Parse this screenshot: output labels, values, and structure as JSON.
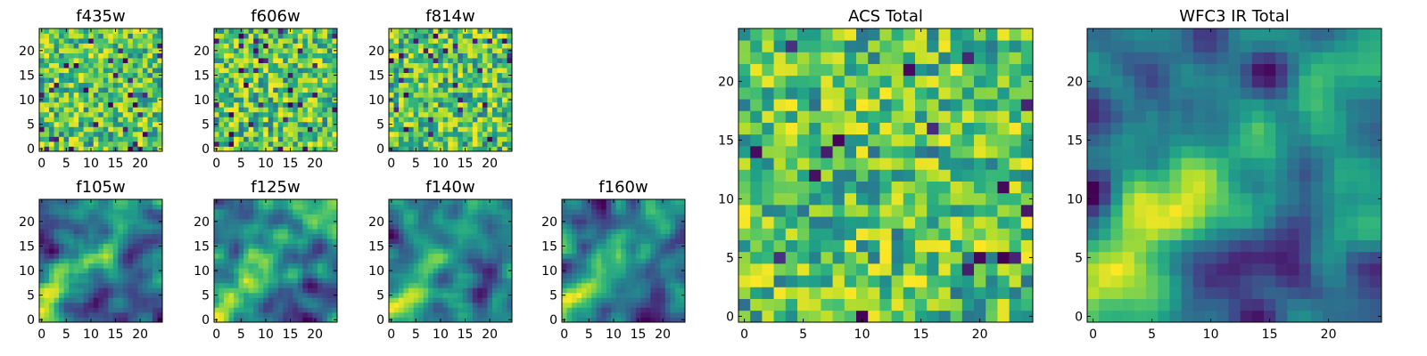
{
  "chart_data": [
    {
      "type": "heatmap",
      "title": "f435w",
      "xticks": [
        0,
        5,
        10,
        15,
        20
      ],
      "yticks": [
        0,
        5,
        10,
        15,
        20
      ],
      "grid_size": 25,
      "xlim": [
        -0.5,
        24.5
      ],
      "ylim": [
        -0.5,
        24.5
      ],
      "colormap": "viridis",
      "pattern": "noise"
    },
    {
      "type": "heatmap",
      "title": "f606w",
      "xticks": [
        0,
        5,
        10,
        15,
        20
      ],
      "yticks": [
        0,
        5,
        10,
        15,
        20
      ],
      "grid_size": 25,
      "xlim": [
        -0.5,
        24.5
      ],
      "ylim": [
        -0.5,
        24.5
      ],
      "colormap": "viridis",
      "pattern": "noise"
    },
    {
      "type": "heatmap",
      "title": "f814w",
      "xticks": [
        0,
        5,
        10,
        15,
        20
      ],
      "yticks": [
        0,
        5,
        10,
        15,
        20
      ],
      "grid_size": 25,
      "xlim": [
        -0.5,
        24.5
      ],
      "ylim": [
        -0.5,
        24.5
      ],
      "colormap": "viridis",
      "pattern": "noise"
    },
    {
      "type": "heatmap",
      "title": "f105w",
      "xticks": [
        0,
        5,
        10,
        15,
        20
      ],
      "yticks": [
        0,
        5,
        10,
        15,
        20
      ],
      "grid_size": 25,
      "xlim": [
        -0.5,
        24.5
      ],
      "ylim": [
        -0.5,
        24.5
      ],
      "colormap": "viridis",
      "pattern": "smooth"
    },
    {
      "type": "heatmap",
      "title": "f125w",
      "xticks": [
        0,
        5,
        10,
        15,
        20
      ],
      "yticks": [
        0,
        5,
        10,
        15,
        20
      ],
      "grid_size": 25,
      "xlim": [
        -0.5,
        24.5
      ],
      "ylim": [
        -0.5,
        24.5
      ],
      "colormap": "viridis",
      "pattern": "smooth"
    },
    {
      "type": "heatmap",
      "title": "f140w",
      "xticks": [
        0,
        5,
        10,
        15,
        20
      ],
      "yticks": [
        0,
        5,
        10,
        15,
        20
      ],
      "grid_size": 25,
      "xlim": [
        -0.5,
        24.5
      ],
      "ylim": [
        -0.5,
        24.5
      ],
      "colormap": "viridis",
      "pattern": "smooth"
    },
    {
      "type": "heatmap",
      "title": "f160w",
      "xticks": [
        0,
        5,
        10,
        15,
        20
      ],
      "yticks": [
        0,
        5,
        10,
        15,
        20
      ],
      "grid_size": 25,
      "xlim": [
        -0.5,
        24.5
      ],
      "ylim": [
        -0.5,
        24.5
      ],
      "colormap": "viridis",
      "pattern": "smooth"
    },
    {
      "type": "heatmap",
      "title": "ACS Total",
      "xticks": [
        0,
        5,
        10,
        15,
        20
      ],
      "yticks": [
        0,
        5,
        10,
        15,
        20
      ],
      "grid_size": 25,
      "xlim": [
        -0.5,
        24.5
      ],
      "ylim": [
        -0.5,
        24.5
      ],
      "colormap": "viridis",
      "pattern": "noise"
    },
    {
      "type": "heatmap",
      "title": "WFC3 IR Total",
      "xticks": [
        0,
        5,
        10,
        15,
        20
      ],
      "yticks": [
        0,
        5,
        10,
        15,
        20
      ],
      "grid_size": 25,
      "xlim": [
        -0.5,
        24.5
      ],
      "ylim": [
        -0.5,
        24.5
      ],
      "colormap": "viridis",
      "pattern": "smooth"
    }
  ]
}
